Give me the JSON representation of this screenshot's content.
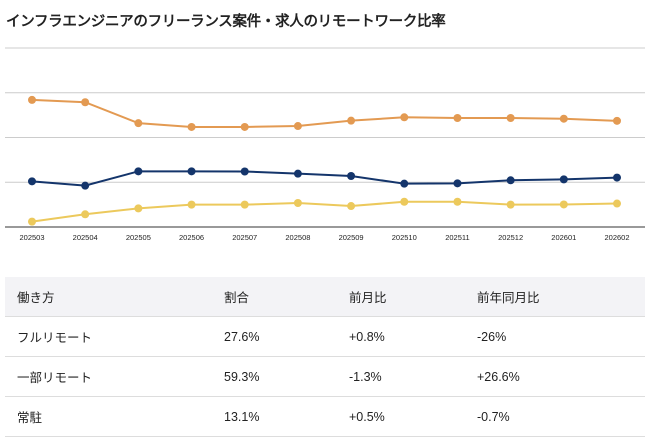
{
  "title": "インフラエンジニアのフリーランス案件・求人のリモートワーク比率",
  "chart_data": {
    "type": "line",
    "categories": [
      "202503",
      "202504",
      "202505",
      "202506",
      "202507",
      "202508",
      "202509",
      "202510",
      "202511",
      "202512",
      "202601",
      "202602"
    ],
    "ylim": [
      0,
      100
    ],
    "grid": true,
    "series": [
      {
        "key": "partial",
        "color": "#e39a52",
        "values": [
          71,
          69.7,
          58,
          55.9,
          55.9,
          56.4,
          59.4,
          61.3,
          60.9,
          60.9,
          60.5,
          59.3
        ]
      },
      {
        "key": "full",
        "color": "#14356b",
        "values": [
          25.5,
          23.1,
          31.1,
          31.1,
          31,
          29.8,
          28.5,
          24.2,
          24.4,
          26.1,
          26.6,
          27.6
        ]
      },
      {
        "key": "onsite",
        "color": "#ecc95c",
        "values": [
          3,
          7.1,
          10.4,
          12.5,
          12.5,
          13.4,
          11.7,
          14.1,
          14.1,
          12.5,
          12.6,
          13.1
        ]
      }
    ]
  },
  "table": {
    "headers": [
      "働き方",
      "割合",
      "前月比",
      "前年同月比"
    ],
    "rows": [
      [
        "フルリモート",
        "27.6%",
        "+0.8%",
        "-26%"
      ],
      [
        "一部リモート",
        "59.3%",
        "-1.3%",
        "+26.6%"
      ],
      [
        "常駐",
        "13.1%",
        "+0.5%",
        "-0.7%"
      ]
    ]
  }
}
